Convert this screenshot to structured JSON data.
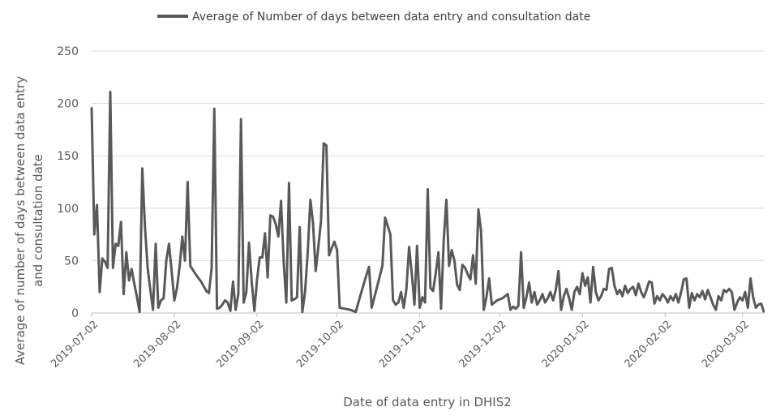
{
  "chart_data": {
    "type": "line",
    "title": "",
    "xlabel": "Date of data entry in DHIS2",
    "ylabel_lines": [
      "Average of number of days between data entry",
      "and consultation date"
    ],
    "ylim": [
      0,
      250
    ],
    "y_ticks": [
      0,
      50,
      100,
      150,
      200,
      250
    ],
    "x_tick_labels": [
      "2019-07-02",
      "2019-08-02",
      "2019-09-02",
      "2019-10-02",
      "2019-11-02",
      "2019-12-02",
      "2020-01-02",
      "2020-02-02",
      "2020-03-02"
    ],
    "x_range": [
      "2019-07-02",
      "2020-03-10"
    ],
    "grid": "horizontal",
    "legend_position": "top",
    "series": [
      {
        "name": "Average of Number of days between data entry and consultation date",
        "color": "#595959",
        "points": [
          [
            "2019-07-02",
            196
          ],
          [
            "2019-07-03",
            75
          ],
          [
            "2019-07-04",
            103
          ],
          [
            "2019-07-05",
            20
          ],
          [
            "2019-07-06",
            52
          ],
          [
            "2019-07-07",
            49
          ],
          [
            "2019-07-08",
            43
          ],
          [
            "2019-07-09",
            211
          ],
          [
            "2019-07-10",
            43
          ],
          [
            "2019-07-11",
            66
          ],
          [
            "2019-07-12",
            64
          ],
          [
            "2019-07-13",
            87
          ],
          [
            "2019-07-14",
            18
          ],
          [
            "2019-07-15",
            58
          ],
          [
            "2019-07-16",
            31
          ],
          [
            "2019-07-17",
            42
          ],
          [
            "2019-07-18",
            28
          ],
          [
            "2019-07-19",
            15
          ],
          [
            "2019-07-20",
            1
          ],
          [
            "2019-07-21",
            138
          ],
          [
            "2019-07-22",
            82
          ],
          [
            "2019-07-23",
            43
          ],
          [
            "2019-07-24",
            22
          ],
          [
            "2019-07-25",
            3
          ],
          [
            "2019-07-26",
            66
          ],
          [
            "2019-07-27",
            5
          ],
          [
            "2019-07-28",
            12
          ],
          [
            "2019-07-29",
            14
          ],
          [
            "2019-07-30",
            50
          ],
          [
            "2019-07-31",
            66
          ],
          [
            "2019-08-01",
            40
          ],
          [
            "2019-08-02",
            12
          ],
          [
            "2019-08-03",
            24
          ],
          [
            "2019-08-04",
            45
          ],
          [
            "2019-08-05",
            73
          ],
          [
            "2019-08-06",
            50
          ],
          [
            "2019-08-07",
            125
          ],
          [
            "2019-08-08",
            45
          ],
          [
            "2019-08-10",
            37
          ],
          [
            "2019-08-12",
            30
          ],
          [
            "2019-08-14",
            21
          ],
          [
            "2019-08-15",
            19
          ],
          [
            "2019-08-16",
            43
          ],
          [
            "2019-08-17",
            195
          ],
          [
            "2019-08-18",
            4
          ],
          [
            "2019-08-19",
            5
          ],
          [
            "2019-08-20",
            8
          ],
          [
            "2019-08-21",
            12
          ],
          [
            "2019-08-22",
            10
          ],
          [
            "2019-08-23",
            2
          ],
          [
            "2019-08-24",
            30
          ],
          [
            "2019-08-25",
            3
          ],
          [
            "2019-08-26",
            18
          ],
          [
            "2019-08-27",
            185
          ],
          [
            "2019-08-28",
            10
          ],
          [
            "2019-08-29",
            20
          ],
          [
            "2019-08-30",
            67
          ],
          [
            "2019-08-31",
            30
          ],
          [
            "2019-09-01",
            2
          ],
          [
            "2019-09-02",
            32
          ],
          [
            "2019-09-03",
            53
          ],
          [
            "2019-09-04",
            53
          ],
          [
            "2019-09-05",
            76
          ],
          [
            "2019-09-06",
            34
          ],
          [
            "2019-09-07",
            93
          ],
          [
            "2019-09-08",
            92
          ],
          [
            "2019-09-09",
            85
          ],
          [
            "2019-09-10",
            73
          ],
          [
            "2019-09-11",
            107
          ],
          [
            "2019-09-12",
            48
          ],
          [
            "2019-09-13",
            10
          ],
          [
            "2019-09-14",
            124
          ],
          [
            "2019-09-15",
            12
          ],
          [
            "2019-09-16",
            13
          ],
          [
            "2019-09-17",
            15
          ],
          [
            "2019-09-18",
            82
          ],
          [
            "2019-09-19",
            1
          ],
          [
            "2019-09-20",
            20
          ],
          [
            "2019-09-21",
            58
          ],
          [
            "2019-09-22",
            108
          ],
          [
            "2019-09-23",
            86
          ],
          [
            "2019-09-24",
            40
          ],
          [
            "2019-09-25",
            63
          ],
          [
            "2019-09-26",
            88
          ],
          [
            "2019-09-27",
            162
          ],
          [
            "2019-09-28",
            160
          ],
          [
            "2019-09-29",
            55
          ],
          [
            "2019-09-30",
            62
          ],
          [
            "2019-10-01",
            68
          ],
          [
            "2019-10-02",
            60
          ],
          [
            "2019-10-03",
            5
          ],
          [
            "2019-10-05",
            4
          ],
          [
            "2019-10-07",
            3
          ],
          [
            "2019-10-09",
            1
          ],
          [
            "2019-10-11",
            19
          ],
          [
            "2019-10-13",
            36
          ],
          [
            "2019-10-14",
            44
          ],
          [
            "2019-10-15",
            5
          ],
          [
            "2019-10-17",
            25
          ],
          [
            "2019-10-19",
            45
          ],
          [
            "2019-10-20",
            91
          ],
          [
            "2019-10-22",
            75
          ],
          [
            "2019-10-23",
            12
          ],
          [
            "2019-10-24",
            8
          ],
          [
            "2019-10-25",
            10
          ],
          [
            "2019-10-26",
            20
          ],
          [
            "2019-10-27",
            5
          ],
          [
            "2019-10-28",
            23
          ],
          [
            "2019-10-29",
            63
          ],
          [
            "2019-10-30",
            38
          ],
          [
            "2019-10-31",
            8
          ],
          [
            "2019-11-01",
            64
          ],
          [
            "2019-11-02",
            5
          ],
          [
            "2019-11-03",
            15
          ],
          [
            "2019-11-04",
            10
          ],
          [
            "2019-11-05",
            118
          ],
          [
            "2019-11-06",
            24
          ],
          [
            "2019-11-07",
            21
          ],
          [
            "2019-11-08",
            38
          ],
          [
            "2019-11-09",
            58
          ],
          [
            "2019-11-10",
            4
          ],
          [
            "2019-11-11",
            69
          ],
          [
            "2019-11-12",
            108
          ],
          [
            "2019-11-13",
            45
          ],
          [
            "2019-11-14",
            60
          ],
          [
            "2019-11-15",
            50
          ],
          [
            "2019-11-16",
            27
          ],
          [
            "2019-11-17",
            22
          ],
          [
            "2019-11-18",
            46
          ],
          [
            "2019-11-19",
            43
          ],
          [
            "2019-11-20",
            37
          ],
          [
            "2019-11-21",
            32
          ],
          [
            "2019-11-22",
            55
          ],
          [
            "2019-11-23",
            28
          ],
          [
            "2019-11-24",
            99
          ],
          [
            "2019-11-25",
            78
          ],
          [
            "2019-11-26",
            3
          ],
          [
            "2019-11-27",
            15
          ],
          [
            "2019-11-28",
            33
          ],
          [
            "2019-11-29",
            8
          ],
          [
            "2019-12-01",
            12
          ],
          [
            "2019-12-03",
            14
          ],
          [
            "2019-12-05",
            18
          ],
          [
            "2019-12-06",
            3
          ],
          [
            "2019-12-07",
            6
          ],
          [
            "2019-12-08",
            4
          ],
          [
            "2019-12-09",
            7
          ],
          [
            "2019-12-10",
            58
          ],
          [
            "2019-12-11",
            5
          ],
          [
            "2019-12-12",
            15
          ],
          [
            "2019-12-13",
            29
          ],
          [
            "2019-12-14",
            10
          ],
          [
            "2019-12-15",
            20
          ],
          [
            "2019-12-16",
            8
          ],
          [
            "2019-12-17",
            12
          ],
          [
            "2019-12-18",
            18
          ],
          [
            "2019-12-19",
            10
          ],
          [
            "2019-12-20",
            14
          ],
          [
            "2019-12-21",
            20
          ],
          [
            "2019-12-22",
            12
          ],
          [
            "2019-12-23",
            22
          ],
          [
            "2019-12-24",
            40
          ],
          [
            "2019-12-25",
            3
          ],
          [
            "2019-12-26",
            16
          ],
          [
            "2019-12-27",
            23
          ],
          [
            "2019-12-28",
            14
          ],
          [
            "2019-12-29",
            3
          ],
          [
            "2019-12-30",
            20
          ],
          [
            "2019-12-31",
            25
          ],
          [
            "2020-01-01",
            18
          ],
          [
            "2020-01-02",
            38
          ],
          [
            "2020-01-03",
            26
          ],
          [
            "2020-01-04",
            34
          ],
          [
            "2020-01-05",
            10
          ],
          [
            "2020-01-06",
            44
          ],
          [
            "2020-01-07",
            20
          ],
          [
            "2020-01-08",
            12
          ],
          [
            "2020-01-09",
            16
          ],
          [
            "2020-01-10",
            23
          ],
          [
            "2020-01-11",
            22
          ],
          [
            "2020-01-12",
            42
          ],
          [
            "2020-01-13",
            43
          ],
          [
            "2020-01-14",
            26
          ],
          [
            "2020-01-15",
            18
          ],
          [
            "2020-01-16",
            22
          ],
          [
            "2020-01-17",
            16
          ],
          [
            "2020-01-18",
            26
          ],
          [
            "2020-01-19",
            19
          ],
          [
            "2020-01-20",
            23
          ],
          [
            "2020-01-21",
            25
          ],
          [
            "2020-01-22",
            17
          ],
          [
            "2020-01-23",
            28
          ],
          [
            "2020-01-24",
            20
          ],
          [
            "2020-01-25",
            15
          ],
          [
            "2020-01-26",
            22
          ],
          [
            "2020-01-27",
            30
          ],
          [
            "2020-01-28",
            29
          ],
          [
            "2020-01-29",
            9
          ],
          [
            "2020-01-30",
            16
          ],
          [
            "2020-01-31",
            12
          ],
          [
            "2020-02-01",
            18
          ],
          [
            "2020-02-02",
            15
          ],
          [
            "2020-02-03",
            10
          ],
          [
            "2020-02-04",
            16
          ],
          [
            "2020-02-05",
            12
          ],
          [
            "2020-02-06",
            18
          ],
          [
            "2020-02-07",
            10
          ],
          [
            "2020-02-08",
            20
          ],
          [
            "2020-02-09",
            32
          ],
          [
            "2020-02-10",
            33
          ],
          [
            "2020-02-11",
            5
          ],
          [
            "2020-02-12",
            19
          ],
          [
            "2020-02-13",
            12
          ],
          [
            "2020-02-14",
            18
          ],
          [
            "2020-02-15",
            15
          ],
          [
            "2020-02-16",
            21
          ],
          [
            "2020-02-17",
            13
          ],
          [
            "2020-02-18",
            22
          ],
          [
            "2020-02-19",
            15
          ],
          [
            "2020-02-20",
            8
          ],
          [
            "2020-02-21",
            3
          ],
          [
            "2020-02-22",
            16
          ],
          [
            "2020-02-23",
            12
          ],
          [
            "2020-02-24",
            22
          ],
          [
            "2020-02-25",
            20
          ],
          [
            "2020-02-26",
            23
          ],
          [
            "2020-02-27",
            20
          ],
          [
            "2020-02-28",
            3
          ],
          [
            "2020-02-29",
            10
          ],
          [
            "2020-03-01",
            15
          ],
          [
            "2020-03-02",
            12
          ],
          [
            "2020-03-03",
            20
          ],
          [
            "2020-03-04",
            5
          ],
          [
            "2020-03-05",
            33
          ],
          [
            "2020-03-06",
            15
          ],
          [
            "2020-03-07",
            5
          ],
          [
            "2020-03-08",
            8
          ],
          [
            "2020-03-09",
            9
          ],
          [
            "2020-03-10",
            1
          ]
        ]
      }
    ]
  }
}
